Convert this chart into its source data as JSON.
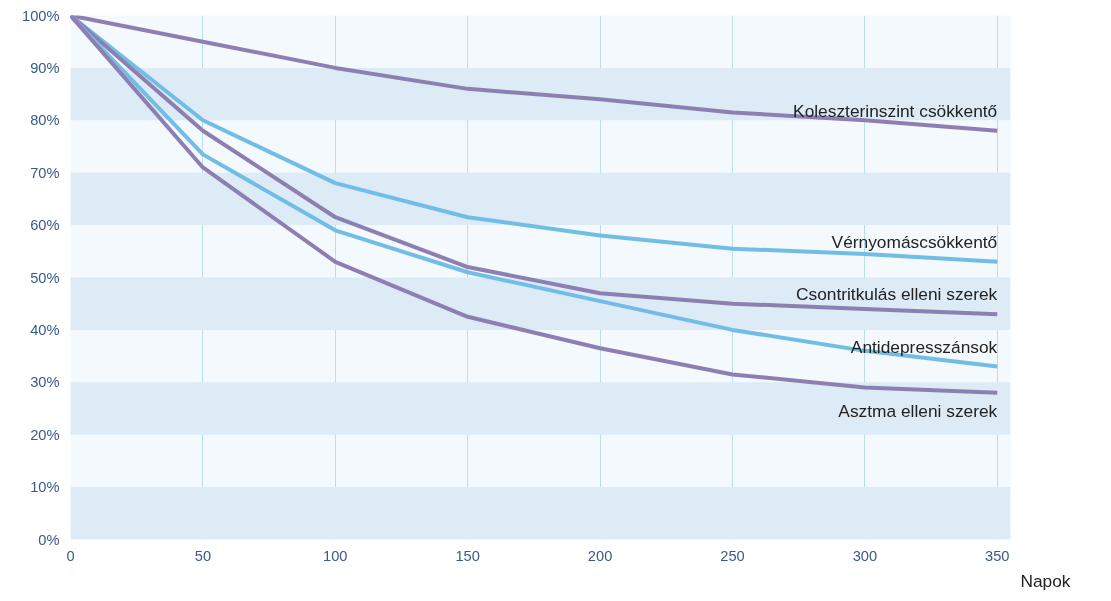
{
  "chart_data": {
    "type": "line",
    "xlabel": "Napok",
    "x": [
      0,
      50,
      100,
      150,
      200,
      250,
      300,
      350
    ],
    "series": [
      {
        "name": "Koleszterinszint csökkentő",
        "color": "#8e7fb3",
        "values": [
          100,
          95,
          90,
          86,
          84,
          81.5,
          80,
          78
        ]
      },
      {
        "name": "Vérnyomáscsökkentő",
        "color": "#72bde6",
        "values": [
          100,
          80,
          68,
          61.5,
          58,
          55.5,
          54.5,
          53
        ]
      },
      {
        "name": "Csontritkulás elleni szerek",
        "color": "#8e7fb3",
        "values": [
          100,
          78,
          61.5,
          52,
          47,
          45,
          44,
          43
        ]
      },
      {
        "name": "Antidepresszánsok",
        "color": "#72bde6",
        "values": [
          100,
          73.5,
          59,
          51,
          45.5,
          40,
          36,
          33
        ]
      },
      {
        "name": "Asztma elleni szerek",
        "color": "#8e7fb3",
        "values": [
          100,
          71,
          53,
          42.5,
          36.5,
          31.5,
          29,
          28
        ]
      }
    ],
    "xlim": [
      0,
      355
    ],
    "xticks": [
      0,
      50,
      100,
      150,
      200,
      250,
      300,
      350
    ],
    "ylim": [
      0,
      100
    ],
    "yticks": [
      {
        "value": 0,
        "label": "0%"
      },
      {
        "value": 10,
        "label": "10%"
      },
      {
        "value": 20,
        "label": "20%"
      },
      {
        "value": 30,
        "label": "30%"
      },
      {
        "value": 40,
        "label": "40%"
      },
      {
        "value": 50,
        "label": "50%"
      },
      {
        "value": 60,
        "label": "60%"
      },
      {
        "value": 70,
        "label": "70%"
      },
      {
        "value": 80,
        "label": "80%"
      },
      {
        "value": 90,
        "label": "90%"
      },
      {
        "value": 100,
        "label": "100%"
      }
    ],
    "bands": [
      {
        "axis": "y",
        "from": 0,
        "to": 10,
        "color": "#dcebf6"
      },
      {
        "axis": "y",
        "from": 20,
        "to": 30,
        "color": "#dcebf6"
      },
      {
        "axis": "y",
        "from": 40,
        "to": 50,
        "color": "#dcebf6"
      },
      {
        "axis": "y",
        "from": 60,
        "to": 70,
        "color": "#dcebf6"
      },
      {
        "axis": "y",
        "from": 80,
        "to": 90,
        "color": "#dcebf6"
      }
    ],
    "grid": "x",
    "legend": false,
    "marker": "none",
    "line_style": "solid"
  }
}
